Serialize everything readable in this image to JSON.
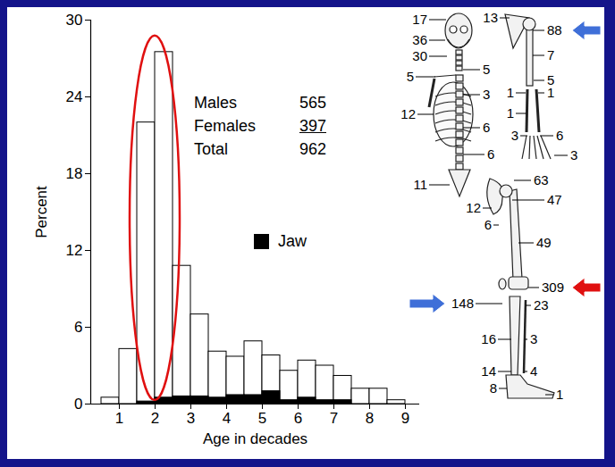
{
  "chart_data": {
    "type": "histogram",
    "bins": [
      0.5,
      1,
      1.5,
      2,
      2.5,
      3,
      3.5,
      4,
      4.5,
      5,
      5.5,
      6,
      6.5,
      7,
      7.5,
      8,
      8.5,
      9
    ],
    "series": [
      {
        "name": null,
        "color": "#ffffff",
        "values": [
          0.5,
          4.3,
          22.0,
          27.5,
          10.8,
          7.0,
          4.1,
          3.7,
          4.9,
          3.8,
          2.6,
          3.4,
          3.0,
          2.2,
          1.2,
          1.2,
          0.3
        ]
      },
      {
        "name": "Jaw",
        "color": "#000000",
        "values": [
          0,
          0,
          0.2,
          0.5,
          0.6,
          0.6,
          0.5,
          0.7,
          0.7,
          1.0,
          0.3,
          0.5,
          0.3,
          0.3,
          0,
          0,
          0
        ]
      }
    ],
    "x_label": "Age in decades",
    "y_label": "Percent",
    "xlim": [
      0.2,
      9.4
    ],
    "xticks": [
      1,
      2,
      3,
      4,
      5,
      6,
      7,
      8,
      9
    ],
    "ylim": [
      0,
      30
    ],
    "yticks": [
      0,
      6,
      12,
      18,
      24,
      30
    ],
    "grid": false,
    "legend": "center",
    "annotations": [
      {
        "text": "Males",
        "value": 565
      },
      {
        "text": "Females",
        "value": 397
      },
      {
        "text": "Total",
        "value": 962
      }
    ]
  },
  "skeleton": {
    "site_counts": [
      17,
      36,
      30,
      5,
      5,
      3,
      12,
      6,
      6,
      11,
      13,
      88,
      7,
      5,
      1,
      1,
      1,
      3,
      6,
      3,
      63,
      12,
      6,
      47,
      49,
      309,
      148,
      23,
      16,
      3,
      14,
      4,
      8,
      1
    ]
  }
}
